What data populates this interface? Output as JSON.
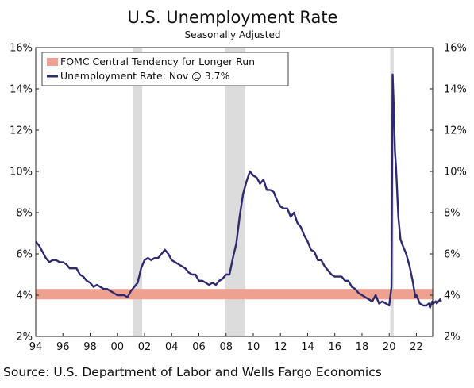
{
  "chart_data": {
    "type": "line",
    "title": "U.S. Unemployment Rate",
    "subtitle": "Seasonally Adjusted",
    "xlim": [
      1994,
      2023.2
    ],
    "ylim": [
      2,
      16
    ],
    "x_ticks": [
      1994,
      1996,
      1998,
      2000,
      2002,
      2004,
      2006,
      2008,
      2010,
      2012,
      2014,
      2016,
      2018,
      2020,
      2022
    ],
    "x_tick_labels": [
      "94",
      "96",
      "98",
      "00",
      "02",
      "04",
      "06",
      "08",
      "10",
      "12",
      "14",
      "16",
      "18",
      "20",
      "22"
    ],
    "y_ticks": [
      2,
      4,
      6,
      8,
      10,
      12,
      14,
      16
    ],
    "y_tick_labels_left": [
      "2%",
      "4%",
      "6%",
      "8%",
      "10%",
      "12%",
      "14%",
      "16%"
    ],
    "y_tick_labels_right": [
      "2%",
      "4%",
      "6%",
      "8%",
      "10%",
      "12%",
      "14%",
      "16%"
    ],
    "grid": false,
    "legend_position": "top-left",
    "recessions": [
      {
        "start": 2001.17,
        "end": 2001.83
      },
      {
        "start": 2007.92,
        "end": 2009.42
      },
      {
        "start": 2020.08,
        "end": 2020.33
      }
    ],
    "band": {
      "name": "FOMC Central Tendency for Longer Run",
      "low": 3.8,
      "high": 4.3,
      "color": "#eea191"
    },
    "series": [
      {
        "name": "Unemployment Rate: Nov @ 3.7%",
        "color": "#2e2a6e",
        "points": [
          [
            1994.0,
            6.6
          ],
          [
            1994.25,
            6.4
          ],
          [
            1994.5,
            6.1
          ],
          [
            1994.75,
            5.8
          ],
          [
            1995.0,
            5.6
          ],
          [
            1995.25,
            5.7
          ],
          [
            1995.5,
            5.7
          ],
          [
            1995.75,
            5.6
          ],
          [
            1996.0,
            5.6
          ],
          [
            1996.25,
            5.5
          ],
          [
            1996.5,
            5.3
          ],
          [
            1996.75,
            5.3
          ],
          [
            1997.0,
            5.3
          ],
          [
            1997.25,
            5.0
          ],
          [
            1997.5,
            4.9
          ],
          [
            1997.75,
            4.7
          ],
          [
            1998.0,
            4.6
          ],
          [
            1998.25,
            4.4
          ],
          [
            1998.5,
            4.5
          ],
          [
            1998.75,
            4.4
          ],
          [
            1999.0,
            4.3
          ],
          [
            1999.25,
            4.3
          ],
          [
            1999.5,
            4.2
          ],
          [
            1999.75,
            4.1
          ],
          [
            2000.0,
            4.0
          ],
          [
            2000.25,
            4.0
          ],
          [
            2000.5,
            4.0
          ],
          [
            2000.75,
            3.9
          ],
          [
            2001.0,
            4.2
          ],
          [
            2001.25,
            4.4
          ],
          [
            2001.5,
            4.6
          ],
          [
            2001.75,
            5.3
          ],
          [
            2002.0,
            5.7
          ],
          [
            2002.25,
            5.8
          ],
          [
            2002.5,
            5.7
          ],
          [
            2002.75,
            5.8
          ],
          [
            2003.0,
            5.8
          ],
          [
            2003.25,
            6.0
          ],
          [
            2003.5,
            6.2
          ],
          [
            2003.75,
            6.0
          ],
          [
            2004.0,
            5.7
          ],
          [
            2004.25,
            5.6
          ],
          [
            2004.5,
            5.5
          ],
          [
            2004.75,
            5.4
          ],
          [
            2005.0,
            5.3
          ],
          [
            2005.25,
            5.1
          ],
          [
            2005.5,
            5.0
          ],
          [
            2005.75,
            5.0
          ],
          [
            2006.0,
            4.7
          ],
          [
            2006.25,
            4.7
          ],
          [
            2006.5,
            4.6
          ],
          [
            2006.75,
            4.5
          ],
          [
            2007.0,
            4.6
          ],
          [
            2007.25,
            4.5
          ],
          [
            2007.5,
            4.7
          ],
          [
            2007.75,
            4.8
          ],
          [
            2008.0,
            5.0
          ],
          [
            2008.25,
            5.0
          ],
          [
            2008.5,
            5.8
          ],
          [
            2008.75,
            6.5
          ],
          [
            2009.0,
            7.8
          ],
          [
            2009.25,
            8.9
          ],
          [
            2009.5,
            9.5
          ],
          [
            2009.75,
            10.0
          ],
          [
            2010.0,
            9.8
          ],
          [
            2010.25,
            9.7
          ],
          [
            2010.5,
            9.4
          ],
          [
            2010.75,
            9.6
          ],
          [
            2011.0,
            9.1
          ],
          [
            2011.25,
            9.1
          ],
          [
            2011.5,
            9.0
          ],
          [
            2011.75,
            8.6
          ],
          [
            2012.0,
            8.3
          ],
          [
            2012.25,
            8.2
          ],
          [
            2012.5,
            8.2
          ],
          [
            2012.75,
            7.8
          ],
          [
            2013.0,
            8.0
          ],
          [
            2013.25,
            7.5
          ],
          [
            2013.5,
            7.3
          ],
          [
            2013.75,
            6.9
          ],
          [
            2014.0,
            6.6
          ],
          [
            2014.25,
            6.2
          ],
          [
            2014.5,
            6.1
          ],
          [
            2014.75,
            5.7
          ],
          [
            2015.0,
            5.7
          ],
          [
            2015.25,
            5.4
          ],
          [
            2015.5,
            5.2
          ],
          [
            2015.75,
            5.0
          ],
          [
            2016.0,
            4.9
          ],
          [
            2016.25,
            4.9
          ],
          [
            2016.5,
            4.9
          ],
          [
            2016.75,
            4.7
          ],
          [
            2017.0,
            4.7
          ],
          [
            2017.25,
            4.4
          ],
          [
            2017.5,
            4.3
          ],
          [
            2017.75,
            4.1
          ],
          [
            2018.0,
            4.0
          ],
          [
            2018.25,
            3.9
          ],
          [
            2018.5,
            3.8
          ],
          [
            2018.75,
            3.7
          ],
          [
            2019.0,
            4.0
          ],
          [
            2019.25,
            3.6
          ],
          [
            2019.5,
            3.7
          ],
          [
            2019.75,
            3.6
          ],
          [
            2020.0,
            3.5
          ],
          [
            2020.17,
            4.4
          ],
          [
            2020.25,
            14.7
          ],
          [
            2020.33,
            13.2
          ],
          [
            2020.42,
            11.0
          ],
          [
            2020.5,
            10.2
          ],
          [
            2020.67,
            7.8
          ],
          [
            2020.83,
            6.7
          ],
          [
            2021.0,
            6.4
          ],
          [
            2021.25,
            6.0
          ],
          [
            2021.5,
            5.4
          ],
          [
            2021.75,
            4.6
          ],
          [
            2021.92,
            3.9
          ],
          [
            2022.0,
            4.0
          ],
          [
            2022.25,
            3.6
          ],
          [
            2022.5,
            3.5
          ],
          [
            2022.75,
            3.5
          ],
          [
            2022.92,
            3.6
          ],
          [
            2023.0,
            3.4
          ],
          [
            2023.17,
            3.7
          ],
          [
            2023.25,
            3.6
          ],
          [
            2023.42,
            3.7
          ],
          [
            2023.5,
            3.6
          ],
          [
            2023.75,
            3.8
          ],
          [
            2023.83,
            3.7
          ]
        ]
      }
    ],
    "source": "Source: U.S. Department of Labor and Wells Fargo Economics"
  }
}
